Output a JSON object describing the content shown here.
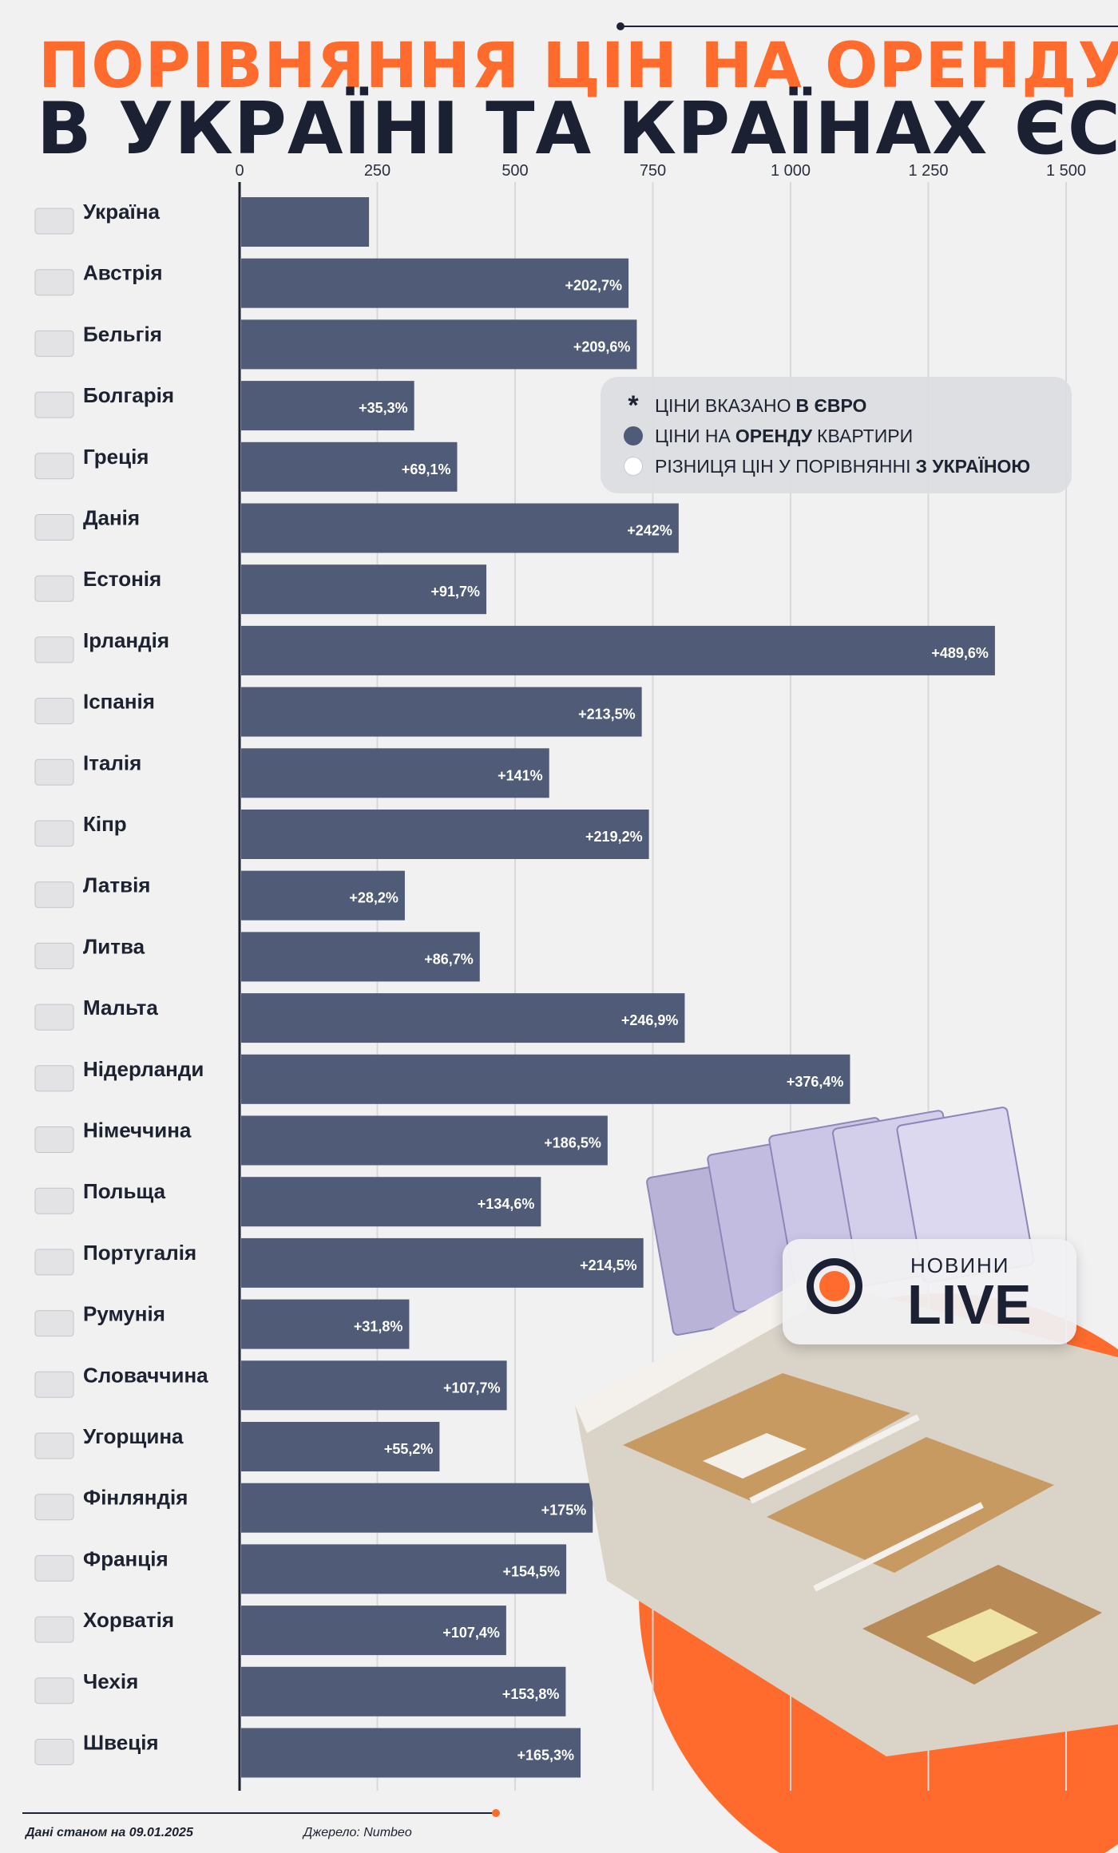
{
  "title_line1": "ПОРІВНЯННЯ ЦІН НА ОРЕНДУ",
  "title_line2": "В УКРАЇНІ ТА КРАЇНАХ ЄС",
  "legend": {
    "row1_pre": "ЦІНИ ВКАЗАНО",
    "row1_bold": "В ЄВРО",
    "row2_pre": "ЦІНИ НА",
    "row2_bold": "ОРЕНДУ",
    "row2_post": "КВАРТИРИ",
    "row3_pre": "РІЗНИЦЯ ЦІН У ПОРІВНЯННІ",
    "row3_bold": "З УКРАЇНОЮ"
  },
  "brand": {
    "small": "НОВИНИ",
    "big": "LIVE"
  },
  "footer": {
    "date": "Дані станом на 09.01.2025",
    "source": "Джерело: Numbeo"
  },
  "colors": {
    "bar": "#4f5b77",
    "accent": "#ff6b2c",
    "text": "#1b2033"
  },
  "chart_data": {
    "type": "bar",
    "orientation": "horizontal",
    "unit": "EUR",
    "xlim": [
      0,
      1500
    ],
    "ticks": [
      "0",
      "250",
      "500",
      "750",
      "1 000",
      "1 250",
      "1 500"
    ],
    "tick_values": [
      0,
      250,
      500,
      750,
      1000,
      1250,
      1500
    ],
    "grid": true,
    "categories": [
      "Україна",
      "Австрія",
      "Бельгія",
      "Болгарія",
      "Греція",
      "Данія",
      "Естонія",
      "Ірландія",
      "Іспанія",
      "Італія",
      "Кіпр",
      "Латвія",
      "Литва",
      "Мальта",
      "Нідерланди",
      "Німеччина",
      "Польща",
      "Португалія",
      "Румунія",
      "Словаччина",
      "Угорщина",
      "Фінляндія",
      "Франція",
      "Хорватія",
      "Чехія",
      "Швеція"
    ],
    "values": [
      232,
      703,
      718,
      314,
      392,
      794,
      445,
      1368,
      727,
      559,
      740,
      297,
      433,
      805,
      1105,
      665,
      544,
      730,
      305,
      482,
      360,
      638,
      590,
      481,
      589,
      616
    ],
    "diff_labels": [
      "",
      "202,7",
      "209,6",
      "35,3",
      "69,1",
      "242",
      "91,7",
      "489,6",
      "213,5",
      "141",
      "219,2",
      "28,2",
      "86,7",
      "246,9",
      "376,4",
      "186,5",
      "134,6",
      "214,5",
      "31,8",
      "107,7",
      "55,2",
      "175",
      "154,5",
      "107,4",
      "153,8",
      "165,3"
    ],
    "diff_prefix": "+",
    "diff_suffix": "%"
  }
}
